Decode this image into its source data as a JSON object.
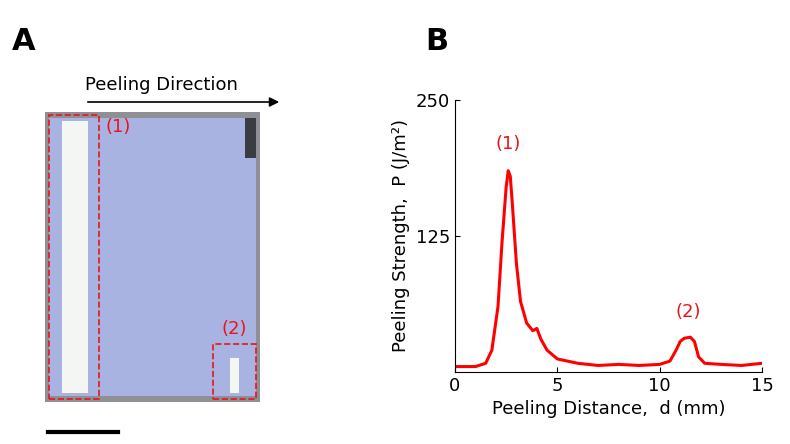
{
  "panel_a": {
    "label": "A",
    "arrow_label": "Peeling Direction",
    "regions": [
      "(1)",
      "(2)"
    ]
  },
  "chart_data": {
    "type": "line",
    "panel_label": "B",
    "x_label": "Peeling Distance,  d (mm)",
    "y_label": "Peeling Strength,  P (J/m²)",
    "x": [
      0,
      1,
      1.5,
      1.8,
      2.1,
      2.3,
      2.5,
      2.6,
      2.7,
      2.8,
      3.0,
      3.2,
      3.5,
      3.8,
      4.0,
      4.2,
      4.5,
      5,
      6,
      7,
      8,
      9,
      10,
      10.5,
      10.8,
      11.0,
      11.2,
      11.5,
      11.7,
      11.9,
      12.2,
      13,
      14,
      15
    ],
    "values": [
      5,
      5,
      8,
      20,
      60,
      120,
      170,
      185,
      180,
      155,
      100,
      65,
      45,
      38,
      40,
      30,
      20,
      12,
      8,
      6,
      7,
      6,
      7,
      10,
      20,
      28,
      31,
      32,
      28,
      14,
      8,
      7,
      6,
      8
    ],
    "color": "#ff0000",
    "xlim": [
      0,
      15
    ],
    "xticks": [
      0,
      5,
      10,
      15
    ],
    "ylim": [
      0,
      250
    ],
    "yticks": [
      125,
      250
    ],
    "annotations": [
      {
        "text": "(1)",
        "x": 2.6,
        "y": 210,
        "color": "#e8141b"
      },
      {
        "text": "(2)",
        "x": 11.4,
        "y": 55,
        "color": "#e8141b"
      }
    ]
  }
}
